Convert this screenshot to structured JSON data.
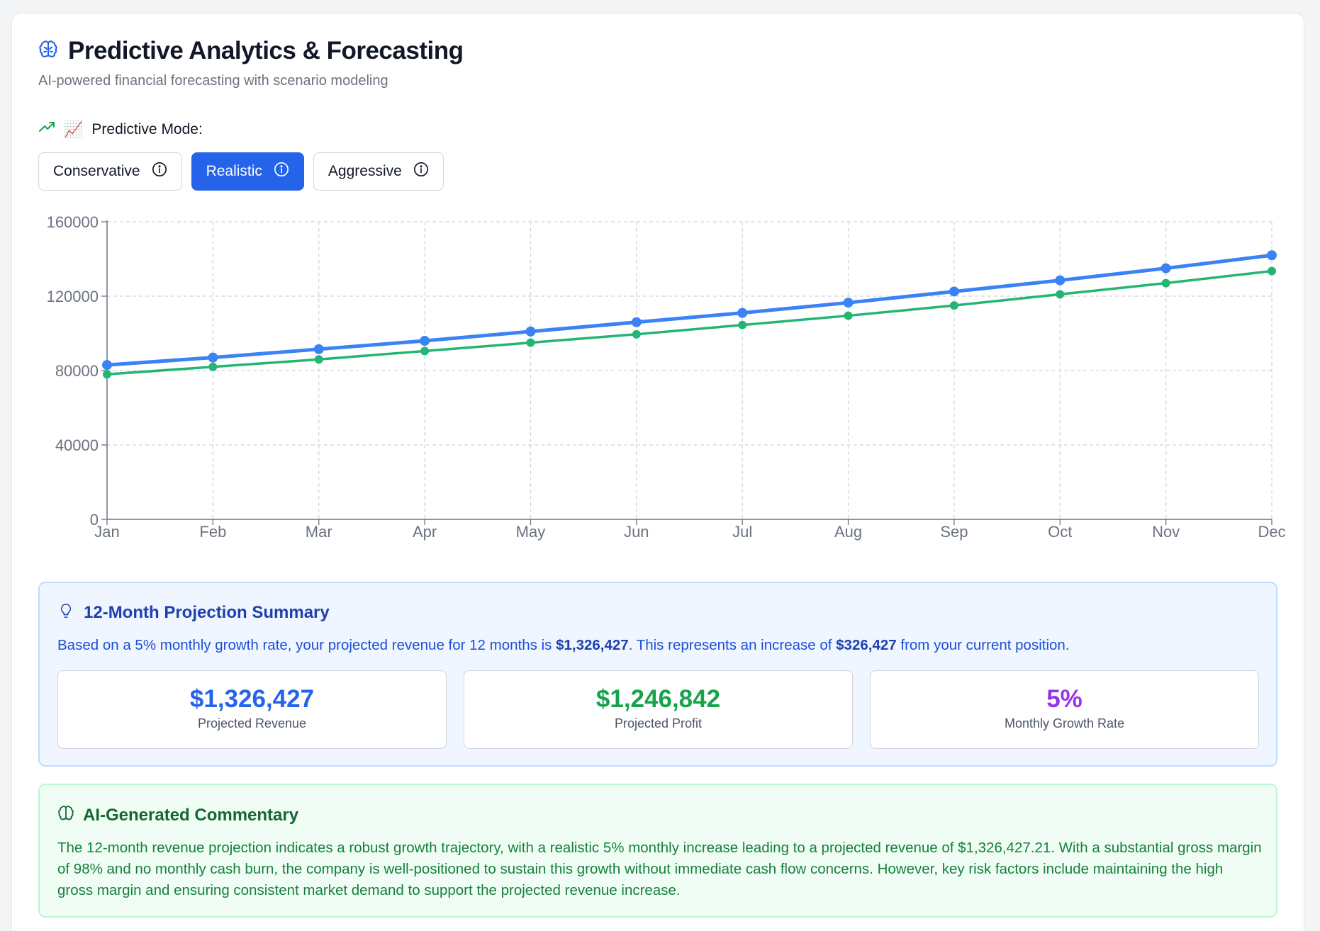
{
  "header": {
    "title": "Predictive Analytics & Forecasting",
    "subtitle": "AI-powered financial forecasting with scenario modeling",
    "icon": "brain-icon"
  },
  "mode": {
    "label": "Predictive Mode:",
    "emoji": "📈",
    "options": [
      {
        "label": "Conservative",
        "active": false
      },
      {
        "label": "Realistic",
        "active": true
      },
      {
        "label": "Aggressive",
        "active": false
      }
    ]
  },
  "colors": {
    "accent": "#2563eb",
    "revenue_line": "#3b82f6",
    "profit_line": "#22b573",
    "summary_bg": "#eff6ff",
    "commentary_bg": "#f0fdf4"
  },
  "chart_data": {
    "type": "line",
    "title": "",
    "xlabel": "",
    "ylabel": "",
    "categories": [
      "Jan",
      "Feb",
      "Mar",
      "Apr",
      "May",
      "Jun",
      "Jul",
      "Aug",
      "Sep",
      "Oct",
      "Nov",
      "Dec"
    ],
    "ylim": [
      0,
      160000
    ],
    "yticks": [
      "0",
      "40000",
      "80000",
      "120000",
      "160000"
    ],
    "grid": true,
    "legend": "none",
    "series": [
      {
        "color": "#3b82f6",
        "values": [
          83000,
          87000,
          91500,
          96000,
          101000,
          106000,
          111000,
          116500,
          122500,
          128500,
          135000,
          142000
        ]
      },
      {
        "color": "#22b573",
        "values": [
          78000,
          82000,
          86000,
          90500,
          95000,
          99500,
          104500,
          109500,
          115000,
          121000,
          127000,
          133500
        ]
      }
    ]
  },
  "summary": {
    "title": "12-Month Projection Summary",
    "text_before": "Based on a 5% monthly growth rate, your projected revenue for 12 months is ",
    "revenue_bold": "$1,326,427",
    "text_middle": ". This represents an increase of ",
    "increase_bold": "$326,427",
    "text_after": " from your current position.",
    "metrics": [
      {
        "value": "$1,326,427",
        "label": "Projected Revenue",
        "color": "#2563eb"
      },
      {
        "value": "$1,246,842",
        "label": "Projected Profit",
        "color": "#16a34a"
      },
      {
        "value": "5%",
        "label": "Monthly Growth Rate",
        "color": "#9333ea"
      }
    ]
  },
  "commentary": {
    "title": "AI-Generated Commentary",
    "text": "The 12-month revenue projection indicates a robust growth trajectory, with a realistic 5% monthly increase leading to a projected revenue of $1,326,427.21. With a substantial gross margin of 98% and no monthly cash burn, the company is well-positioned to sustain this growth without immediate cash flow concerns. However, key risk factors include maintaining the high gross margin and ensuring consistent market demand to support the projected revenue increase."
  }
}
